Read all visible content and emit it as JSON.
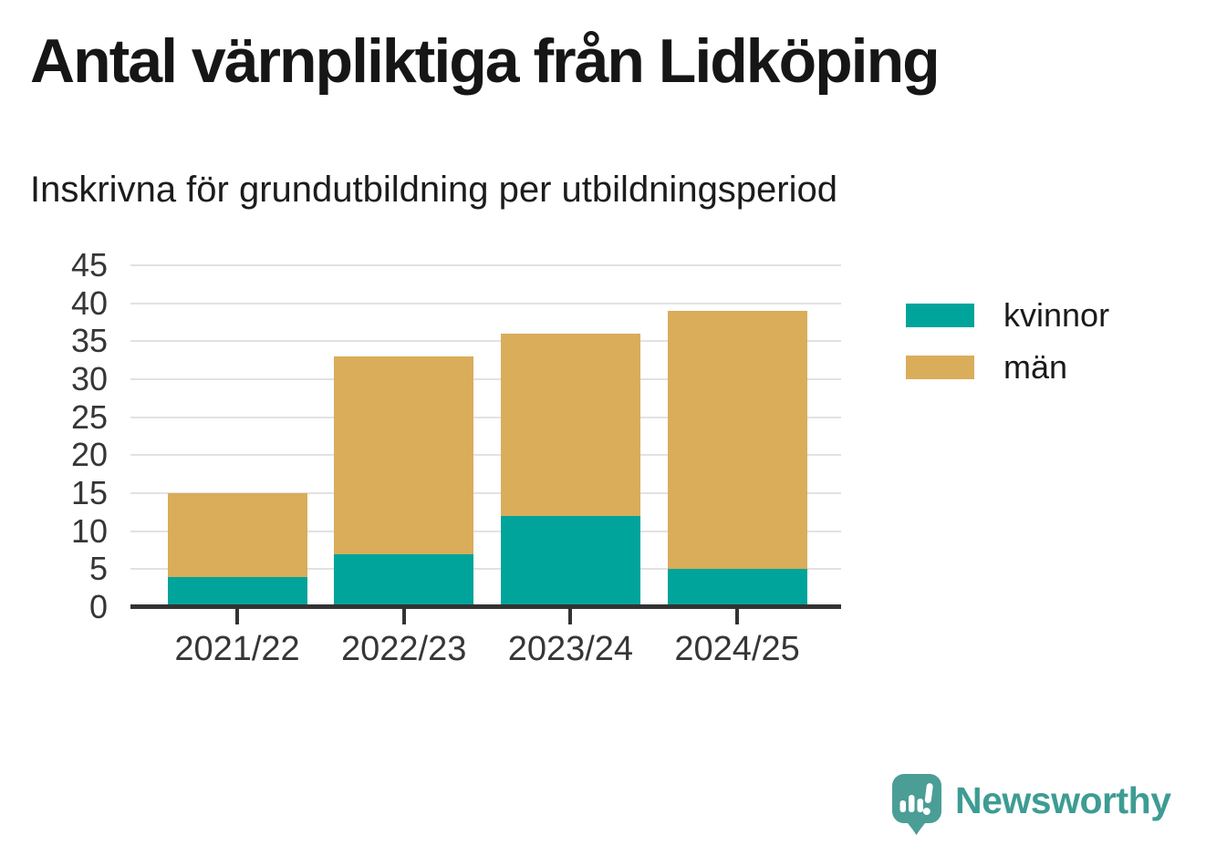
{
  "title": "Antal värnpliktiga från Lidköping",
  "subtitle": "Inskrivna för grundutbildning per utbildningsperiod",
  "chart_data": {
    "type": "bar",
    "stacked": true,
    "categories": [
      "2021/22",
      "2022/23",
      "2023/24",
      "2024/25"
    ],
    "series": [
      {
        "name": "kvinnor",
        "color": "#00a49a",
        "values": [
          4,
          7,
          12,
          5
        ]
      },
      {
        "name": "män",
        "color": "#d9ad5a",
        "values": [
          11,
          26,
          24,
          34
        ]
      }
    ],
    "totals": [
      15,
      33,
      36,
      39
    ],
    "ylim": [
      0,
      45
    ],
    "ytick_step": 5,
    "grid": "horizontal-only",
    "legend_position": "right"
  },
  "branding": {
    "logo_text": "Newsworthy",
    "logo_text_color": "#3d9c93",
    "logo_icon_color": "#4a9e96",
    "logo_icon_glyph_color": "#ffffff"
  }
}
